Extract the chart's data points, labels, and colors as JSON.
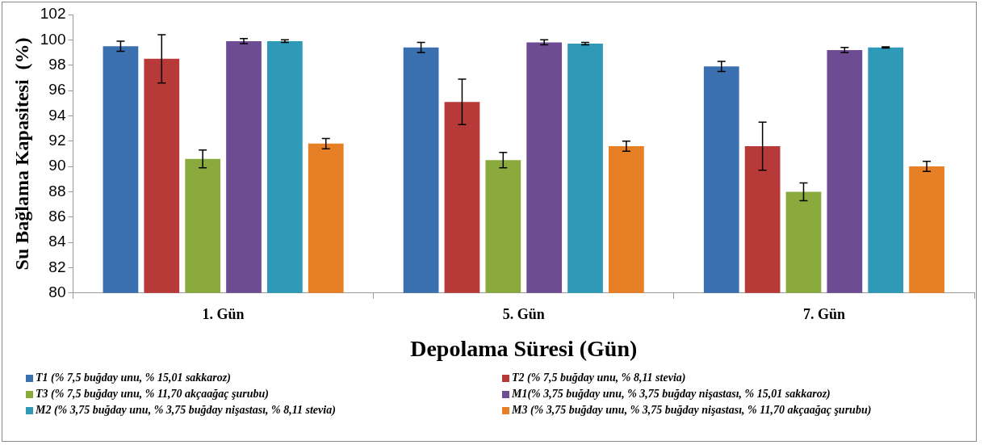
{
  "chart_data": {
    "type": "bar",
    "xlabel": "Depolama Süresi (Gün)",
    "ylabel": "Su Bağlama Kapasitesi  (%)",
    "categories": [
      "1. Gün",
      "5. Gün",
      "7. Gün"
    ],
    "series": [
      {
        "name": "T1 (% 7,5 buğday unu, % 15,01 sakkaroz)",
        "color": "#3a6fb0",
        "values": [
          99.5,
          99.4,
          97.9
        ],
        "errors": [
          0.4,
          0.4,
          0.4
        ]
      },
      {
        "name": "T2 (% 7,5 buğday unu, % 8,11 stevia)",
        "color": "#b83a38",
        "values": [
          98.5,
          95.1,
          91.6
        ],
        "errors": [
          1.9,
          1.8,
          1.9
        ]
      },
      {
        "name": "T3 (% 7,5 buğday unu, % 11,70 akçaağaç şurubu)",
        "color": "#8aaa3e",
        "values": [
          90.6,
          90.5,
          88.0
        ],
        "errors": [
          0.7,
          0.6,
          0.7
        ]
      },
      {
        "name": "M1(% 3,75 buğday unu, % 3,75 buğday nişastası, % 15,01 sakkaroz)",
        "color": "#6e4c94",
        "values": [
          99.9,
          99.8,
          99.2
        ],
        "errors": [
          0.2,
          0.2,
          0.2
        ]
      },
      {
        "name": "M2 (% 3,75 buğday unu, % 3,75 buğday nişastası, % 8,11 stevia)",
        "color": "#2e9ab8",
        "values": [
          99.9,
          99.7,
          99.4
        ],
        "errors": [
          0.1,
          0.1,
          0.05
        ]
      },
      {
        "name": "M3 (% 3,75 buğday unu, % 3,75 buğday nişastası, % 11,70 akçaağaç şurubu)",
        "color": "#e77f24",
        "values": [
          91.8,
          91.6,
          90.0
        ],
        "errors": [
          0.4,
          0.4,
          0.4
        ]
      }
    ],
    "ylim": [
      80,
      102
    ],
    "yticks": [
      80,
      82,
      84,
      86,
      88,
      90,
      92,
      94,
      96,
      98,
      100,
      102
    ],
    "grid": false,
    "legend": "bottom"
  }
}
